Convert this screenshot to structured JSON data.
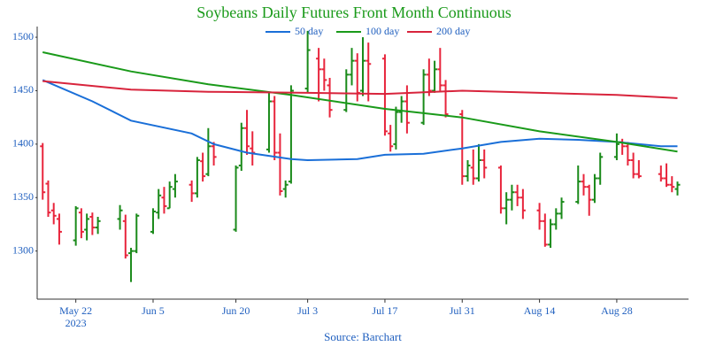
{
  "chart_data": {
    "type": "ohlc",
    "title": "Soybeans Daily Futures Front Month Continuous",
    "source": "Source: Barchart",
    "up_color": "#1a8a1a",
    "down_color": "#e8253c",
    "x": [
      "2023-05-16",
      "2023-05-17",
      "2023-05-18",
      "2023-05-19",
      "2023-05-22",
      "2023-05-23",
      "2023-05-24",
      "2023-05-25",
      "2023-05-26",
      "2023-05-30",
      "2023-05-31",
      "2023-06-01",
      "2023-06-02",
      "2023-06-05",
      "2023-06-06",
      "2023-06-07",
      "2023-06-08",
      "2023-06-09",
      "2023-06-12",
      "2023-06-13",
      "2023-06-14",
      "2023-06-15",
      "2023-06-16",
      "2023-06-20",
      "2023-06-21",
      "2023-06-22",
      "2023-06-23",
      "2023-06-26",
      "2023-06-27",
      "2023-06-28",
      "2023-06-29",
      "2023-06-30",
      "2023-07-03",
      "2023-07-05",
      "2023-07-06",
      "2023-07-07",
      "2023-07-10",
      "2023-07-11",
      "2023-07-12",
      "2023-07-13",
      "2023-07-14",
      "2023-07-17",
      "2023-07-18",
      "2023-07-19",
      "2023-07-20",
      "2023-07-21",
      "2023-07-24",
      "2023-07-25",
      "2023-07-26",
      "2023-07-27",
      "2023-07-28",
      "2023-07-31",
      "2023-08-01",
      "2023-08-02",
      "2023-08-03",
      "2023-08-04",
      "2023-08-07",
      "2023-08-08",
      "2023-08-09",
      "2023-08-10",
      "2023-08-11",
      "2023-08-14",
      "2023-08-15",
      "2023-08-16",
      "2023-08-17",
      "2023-08-18",
      "2023-08-21",
      "2023-08-22",
      "2023-08-23",
      "2023-08-24",
      "2023-08-25",
      "2023-08-28",
      "2023-08-29",
      "2023-08-30",
      "2023-08-31",
      "2023-09-01",
      "2023-09-05",
      "2023-09-06",
      "2023-09-07",
      "2023-09-08"
    ],
    "open": [
      1398,
      1363,
      1338,
      1330,
      1310,
      1336,
      1320,
      1332,
      1322,
      1330,
      1328,
      1298,
      1300,
      1318,
      1336,
      1350,
      1340,
      1358,
      1362,
      1354,
      1384,
      1372,
      1398,
      1320,
      1380,
      1415,
      1396,
      1395,
      1440,
      1392,
      1358,
      1365,
      1452,
      1480,
      1470,
      1455,
      1432,
      1465,
      1478,
      1450,
      1478,
      1480,
      1410,
      1400,
      1430,
      1440,
      1420,
      1465,
      1450,
      1470,
      1455,
      1428,
      1370,
      1378,
      1368,
      1385,
      1378,
      1340,
      1348,
      1355,
      1350,
      1338,
      1328,
      1306,
      1325,
      1335,
      1346,
      1365,
      1360,
      1348,
      1368,
      1388,
      1402,
      1398,
      1385,
      1372,
      1372,
      1368,
      1362,
      1358
    ],
    "high": [
      1401,
      1366,
      1345,
      1335,
      1342,
      1340,
      1335,
      1336,
      1332,
      1343,
      1334,
      1303,
      1335,
      1340,
      1358,
      1360,
      1365,
      1372,
      1366,
      1388,
      1392,
      1415,
      1402,
      1380,
      1420,
      1432,
      1412,
      1448,
      1445,
      1410,
      1366,
      1455,
      1506,
      1490,
      1480,
      1462,
      1470,
      1490,
      1485,
      1500,
      1495,
      1484,
      1418,
      1435,
      1445,
      1455,
      1470,
      1480,
      1478,
      1490,
      1460,
      1432,
      1385,
      1395,
      1400,
      1395,
      1380,
      1355,
      1362,
      1362,
      1358,
      1345,
      1335,
      1330,
      1340,
      1350,
      1380,
      1372,
      1362,
      1372,
      1392,
      1410,
      1405,
      1402,
      1392,
      1385,
      1380,
      1382,
      1370,
      1365
    ],
    "low": [
      1348,
      1332,
      1325,
      1306,
      1305,
      1312,
      1310,
      1315,
      1316,
      1320,
      1293,
      1271,
      1298,
      1316,
      1330,
      1335,
      1340,
      1350,
      1346,
      1350,
      1365,
      1370,
      1380,
      1318,
      1375,
      1390,
      1380,
      1392,
      1385,
      1352,
      1350,
      1363,
      1448,
      1440,
      1450,
      1425,
      1430,
      1455,
      1440,
      1445,
      1440,
      1408,
      1393,
      1395,
      1420,
      1410,
      1418,
      1445,
      1448,
      1450,
      1425,
      1362,
      1365,
      1362,
      1365,
      1368,
      1335,
      1325,
      1338,
      1342,
      1330,
      1320,
      1304,
      1303,
      1320,
      1330,
      1344,
      1352,
      1333,
      1345,
      1362,
      1385,
      1390,
      1380,
      1368,
      1368,
      1365,
      1360,
      1355,
      1352
    ],
    "close": [
      1355,
      1336,
      1333,
      1318,
      1340,
      1318,
      1330,
      1322,
      1328,
      1338,
      1296,
      1300,
      1333,
      1337,
      1352,
      1342,
      1360,
      1365,
      1354,
      1385,
      1370,
      1398,
      1388,
      1378,
      1415,
      1398,
      1392,
      1440,
      1392,
      1356,
      1362,
      1450,
      1488,
      1470,
      1460,
      1432,
      1465,
      1478,
      1448,
      1478,
      1475,
      1412,
      1398,
      1430,
      1440,
      1420,
      1465,
      1450,
      1470,
      1455,
      1428,
      1370,
      1380,
      1368,
      1385,
      1378,
      1340,
      1348,
      1355,
      1350,
      1338,
      1328,
      1306,
      1325,
      1335,
      1346,
      1365,
      1360,
      1348,
      1368,
      1388,
      1400,
      1398,
      1385,
      1372,
      1370,
      1368,
      1362,
      1360,
      1362
    ],
    "moving_averages": [
      {
        "name": "50 day",
        "color": "#1a6fd8",
        "x": [
          "2023-05-16",
          "2023-05-25",
          "2023-06-01",
          "2023-06-12",
          "2023-06-16",
          "2023-06-22",
          "2023-06-30",
          "2023-07-03",
          "2023-07-12",
          "2023-07-17",
          "2023-07-24",
          "2023-07-31",
          "2023-08-07",
          "2023-08-14",
          "2023-08-21",
          "2023-08-28",
          "2023-09-05",
          "2023-09-08"
        ],
        "values": [
          1460,
          1440,
          1422,
          1410,
          1400,
          1392,
          1386,
          1385,
          1386,
          1390,
          1391,
          1396,
          1402,
          1405,
          1404,
          1402,
          1398,
          1398
        ]
      },
      {
        "name": "100 day",
        "color": "#1a9a1a",
        "x": [
          "2023-05-16",
          "2023-06-01",
          "2023-06-15",
          "2023-06-30",
          "2023-07-17",
          "2023-07-31",
          "2023-08-14",
          "2023-08-28",
          "2023-09-08"
        ],
        "values": [
          1486,
          1468,
          1456,
          1446,
          1433,
          1425,
          1412,
          1402,
          1393
        ]
      },
      {
        "name": "200 day",
        "color": "#d8243c",
        "x": [
          "2023-05-16",
          "2023-06-01",
          "2023-06-15",
          "2023-07-03",
          "2023-07-17",
          "2023-07-31",
          "2023-08-14",
          "2023-08-28",
          "2023-09-08"
        ],
        "values": [
          1459,
          1451,
          1449,
          1448,
          1447,
          1450,
          1448,
          1446,
          1443
        ]
      }
    ],
    "xlim": [
      "2023-05-15",
      "2023-09-10"
    ],
    "xticks": [
      {
        "value": "2023-05-22",
        "label": "May 22\n2023"
      },
      {
        "value": "2023-06-05",
        "label": "Jun 5"
      },
      {
        "value": "2023-06-20",
        "label": "Jun 20"
      },
      {
        "value": "2023-07-03",
        "label": "Jul 3"
      },
      {
        "value": "2023-07-17",
        "label": "Jul 17"
      },
      {
        "value": "2023-07-31",
        "label": "Jul 31"
      },
      {
        "value": "2023-08-14",
        "label": "Aug 14"
      },
      {
        "value": "2023-08-28",
        "label": "Aug 28"
      }
    ],
    "ylim": [
      1255,
      1510
    ],
    "yticks": [
      1300,
      1350,
      1400,
      1450,
      1500
    ]
  }
}
